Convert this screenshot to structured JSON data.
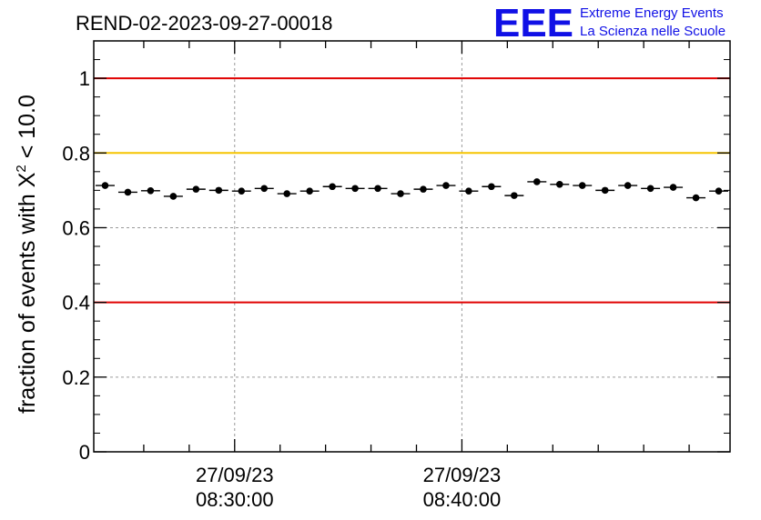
{
  "title": "REND-02-2023-09-27-00018",
  "logo": {
    "mark": "EEE",
    "line1": "Extreme Energy Events",
    "line2": "La Scienza nelle Scuole"
  },
  "chart_data": {
    "type": "scatter",
    "ylabel_main": "fraction of events with X",
    "ylabel_sup": "2",
    "ylabel_tail": " < 10.0",
    "ylim": [
      0,
      1.1
    ],
    "y_ticks": [
      0,
      0.2,
      0.4,
      0.6,
      0.8,
      1
    ],
    "y_tick_labels": [
      "0",
      "0.2",
      "0.4",
      "0.6",
      "0.8",
      "1"
    ],
    "x_range_minutes": [
      23.8,
      51.8
    ],
    "x_labels": [
      {
        "x_minutes": 30,
        "line1": "27/09/23",
        "line2": "08:30:00"
      },
      {
        "x_minutes": 40,
        "line1": "27/09/23",
        "line2": "08:40:00"
      }
    ],
    "minor_x_ticks_minutes": [
      26,
      28,
      30,
      32,
      34,
      36,
      38,
      40,
      42,
      44,
      46,
      48,
      50
    ],
    "reference_lines": [
      {
        "y": 1.0,
        "color": "#e00000"
      },
      {
        "y": 0.8,
        "color": "#f5c400"
      },
      {
        "y": 0.4,
        "color": "#e00000"
      }
    ],
    "grid": true,
    "x_minutes": [
      24.3,
      25.3,
      26.3,
      27.3,
      28.3,
      29.3,
      30.3,
      31.3,
      32.3,
      33.3,
      34.3,
      35.3,
      36.3,
      37.3,
      38.3,
      39.3,
      40.3,
      41.3,
      42.3,
      43.3,
      44.3,
      45.3,
      46.3,
      47.3,
      48.3,
      49.3,
      50.3,
      51.3
    ],
    "values": [
      0.713,
      0.695,
      0.699,
      0.684,
      0.703,
      0.7,
      0.698,
      0.705,
      0.691,
      0.698,
      0.71,
      0.705,
      0.705,
      0.691,
      0.703,
      0.713,
      0.698,
      0.71,
      0.686,
      0.723,
      0.716,
      0.713,
      0.7,
      0.713,
      0.705,
      0.708,
      0.68,
      0.698
    ],
    "errors": [
      0.006,
      0.006,
      0.006,
      0.006,
      0.006,
      0.006,
      0.006,
      0.006,
      0.006,
      0.006,
      0.006,
      0.006,
      0.006,
      0.006,
      0.006,
      0.006,
      0.006,
      0.006,
      0.006,
      0.006,
      0.006,
      0.006,
      0.006,
      0.006,
      0.006,
      0.006,
      0.006,
      0.006
    ],
    "bin_width_minutes": 1.0,
    "marker_color": "#000000"
  }
}
